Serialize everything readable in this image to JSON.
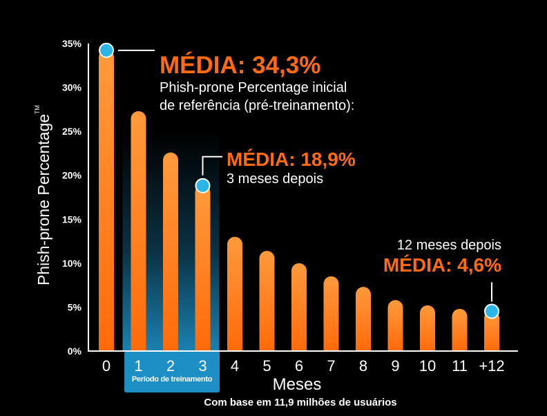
{
  "colors": {
    "bar_top": "#ff9a3c",
    "bar_bottom": "#ff6a0a",
    "dot": "#2cb6e8",
    "highlight": "#1e8fc4",
    "accent": "#ff6a13"
  },
  "chart_data": {
    "type": "bar",
    "categories": [
      "0",
      "1",
      "2",
      "3",
      "4",
      "5",
      "6",
      "7",
      "8",
      "9",
      "10",
      "11",
      "+12"
    ],
    "values": [
      34.3,
      27.3,
      22.6,
      18.9,
      13.0,
      11.4,
      10.0,
      8.5,
      7.3,
      5.8,
      5.2,
      4.8,
      4.6
    ],
    "ylim": [
      0,
      35
    ],
    "yticks": [
      "0%",
      "5%",
      "10%",
      "15%",
      "20%",
      "25%",
      "30%",
      "35%"
    ],
    "ylabel": "Phish-prone Percentage",
    "ylabel_mark": "TM",
    "xlabel": "Meses",
    "highlight_categories": [
      "1",
      "2",
      "3"
    ],
    "highlight_label": "Período de treinamento",
    "footnote": "Com base em 11,9 milhões de usuários",
    "annotations": [
      {
        "category": "0",
        "value": 34.3,
        "title": "MÉDIA: 34,3%",
        "line1": "Phish-prone Percentage inicial",
        "line2": "de referência (pré-treinamento):"
      },
      {
        "category": "3",
        "value": 18.9,
        "title": "MÉDIA: 18,9%",
        "line1": "3 meses depois"
      },
      {
        "category": "+12",
        "value": 4.6,
        "title": "MÉDIA: 4,6%",
        "pre": "12 meses depois"
      }
    ]
  }
}
